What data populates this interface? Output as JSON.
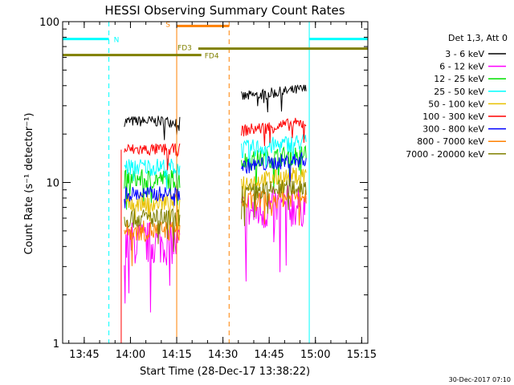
{
  "chart_data": {
    "type": "line",
    "title": "HESSI Observing Summary Count Rates",
    "xlabel": "Start Time (28-Dec-17 13:38:22)",
    "ylabel": "Count Rate (s⁻¹ detector⁻¹)",
    "yscale": "log",
    "ylim": [
      1,
      100
    ],
    "y_ticks": [
      "1",
      "10",
      "100"
    ],
    "xlim_minutes_after_13_40": [
      -2,
      97
    ],
    "x_ticks": [
      {
        "label": "13:45",
        "min": 5
      },
      {
        "label": "14:00",
        "min": 20
      },
      {
        "label": "14:15",
        "min": 35
      },
      {
        "label": "14:30",
        "min": 50
      },
      {
        "label": "14:45",
        "min": 65
      },
      {
        "label": "15:00",
        "min": 80
      },
      {
        "label": "15:15",
        "min": 95
      }
    ],
    "legend_title": "Det 1,3, Att 0",
    "legend_placement": "right",
    "series": [
      {
        "name": "3 - 6 keV",
        "color": "#000000",
        "seg1": 24,
        "seg2": 34,
        "spread": 0.08
      },
      {
        "name": "6 - 12 keV",
        "color": "#ff00ff",
        "seg1": 4.2,
        "seg2": 6.5,
        "spread": 0.32
      },
      {
        "name": "12 - 25 keV",
        "color": "#00e000",
        "seg1": 10.5,
        "seg2": 13.5,
        "spread": 0.14
      },
      {
        "name": "25 - 50 keV",
        "color": "#00ffff",
        "seg1": 12.5,
        "seg2": 16,
        "spread": 0.13
      },
      {
        "name": "50 - 100 keV",
        "color": "#e8c000",
        "seg1": 7.5,
        "seg2": 10,
        "spread": 0.13
      },
      {
        "name": "100 - 300 keV",
        "color": "#ff0000",
        "seg1": 16,
        "seg2": 21,
        "spread": 0.09
      },
      {
        "name": "300 - 800 keV",
        "color": "#0000ff",
        "seg1": 8.5,
        "seg2": 12.5,
        "spread": 0.11
      },
      {
        "name": "800 - 7000 keV",
        "color": "#ff8000",
        "seg1": 5,
        "seg2": 7.5,
        "spread": 0.15
      },
      {
        "name": "7000 - 20000 keV",
        "color": "#808000",
        "seg1": 6,
        "seg2": 8.5,
        "spread": 0.14
      }
    ],
    "observation_windows_min": [
      [
        18,
        36
      ],
      [
        56,
        77
      ]
    ],
    "flags": [
      {
        "label": "N",
        "color": "#00ffff",
        "y": 78,
        "spans": [
          [
            -2,
            13
          ],
          [
            78,
            97
          ]
        ]
      },
      {
        "label": "S",
        "color": "#ff8000",
        "y": 94,
        "spans": [
          [
            35,
            52
          ]
        ]
      },
      {
        "label": "FD3",
        "color": "#808000",
        "y": 68,
        "spans": [
          [
            42,
            97
          ]
        ]
      },
      {
        "label": "FD4",
        "color": "#808000",
        "y": 62,
        "spans": [
          [
            -2,
            43
          ]
        ]
      }
    ],
    "vlines": [
      {
        "min": -2,
        "color": "#00ffff",
        "style": "solid"
      },
      {
        "min": 13,
        "color": "#00ffff",
        "style": "dashed"
      },
      {
        "min": 35,
        "color": "#ff8000",
        "style": "solid"
      },
      {
        "min": 52,
        "color": "#ff8000",
        "style": "dashed"
      },
      {
        "min": 78,
        "color": "#00ffff",
        "style": "solid"
      },
      {
        "min": 97,
        "color": "#00ffff",
        "style": "dashed"
      }
    ],
    "red_drop_min": 17,
    "footer": "30-Dec-2017 07:10"
  }
}
